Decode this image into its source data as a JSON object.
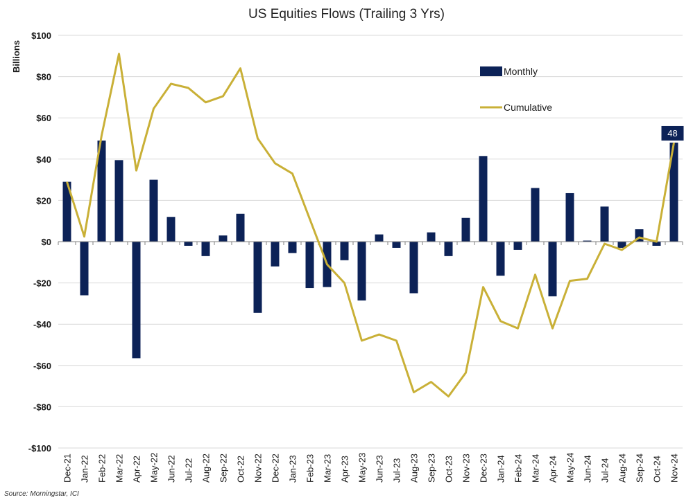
{
  "chart_data": {
    "type": "bar+line",
    "title": "US Equities Flows (Trailing 3 Yrs)",
    "ylabel": "Billions",
    "xlabel": "",
    "ylim": [
      -100,
      100
    ],
    "yticks": [
      100,
      80,
      60,
      40,
      20,
      0,
      -20,
      -40,
      -60,
      -80,
      -100
    ],
    "ytick_labels": [
      "$100",
      "$80",
      "$60",
      "$40",
      "$20",
      "$0",
      "-$20",
      "-$40",
      "-$60",
      "-$80",
      "-$100"
    ],
    "grid": "horizontal",
    "legend_position": "top-right",
    "categories": [
      "Dec-21",
      "Jan-22",
      "Feb-22",
      "Mar-22",
      "Apr-22",
      "May-22",
      "Jun-22",
      "Jul-22",
      "Aug-22",
      "Sep-22",
      "Oct-22",
      "Nov-22",
      "Dec-22",
      "Jan-23",
      "Feb-23",
      "Mar-23",
      "Apr-23",
      "May-23",
      "Jun-23",
      "Jul-23",
      "Aug-23",
      "Sep-23",
      "Oct-23",
      "Nov-23",
      "Dec-23",
      "Jan-24",
      "Feb-24",
      "Mar-24",
      "Apr-24",
      "May-24",
      "Jun-24",
      "Jul-24",
      "Aug-24",
      "Sep-24",
      "Oct-24",
      "Nov-24"
    ],
    "series": [
      {
        "name": "Monthly",
        "type": "bar",
        "color": "#0c2257",
        "values": [
          29,
          -26,
          49,
          39.5,
          -56.5,
          30,
          12,
          -2,
          -7,
          3,
          13.5,
          -34.5,
          -12,
          -5.5,
          -22.5,
          -22,
          -9,
          -28.5,
          3.5,
          -3,
          -25,
          4.5,
          -7,
          11.5,
          41.5,
          -16.5,
          -4,
          26,
          -26.5,
          23.5,
          0.5,
          17,
          -3,
          6,
          -2,
          48
        ]
      },
      {
        "name": "Cumulative",
        "type": "line",
        "color": "#c9b037",
        "values": [
          29,
          2.5,
          51.5,
          91,
          34.5,
          64.5,
          76.5,
          74.5,
          67.5,
          70.5,
          84,
          50,
          38,
          33,
          11,
          -11,
          -20,
          -48,
          -45,
          -48,
          -73,
          -68,
          -75,
          -63.5,
          -22,
          -38.5,
          -42,
          -16,
          -42,
          -19,
          -18,
          -1,
          -4,
          2,
          0,
          48
        ]
      }
    ],
    "annotations": [
      {
        "category": "Nov-24",
        "series": "Monthly",
        "text": "48"
      }
    ]
  },
  "source": "Source: Morningstar, ICI"
}
